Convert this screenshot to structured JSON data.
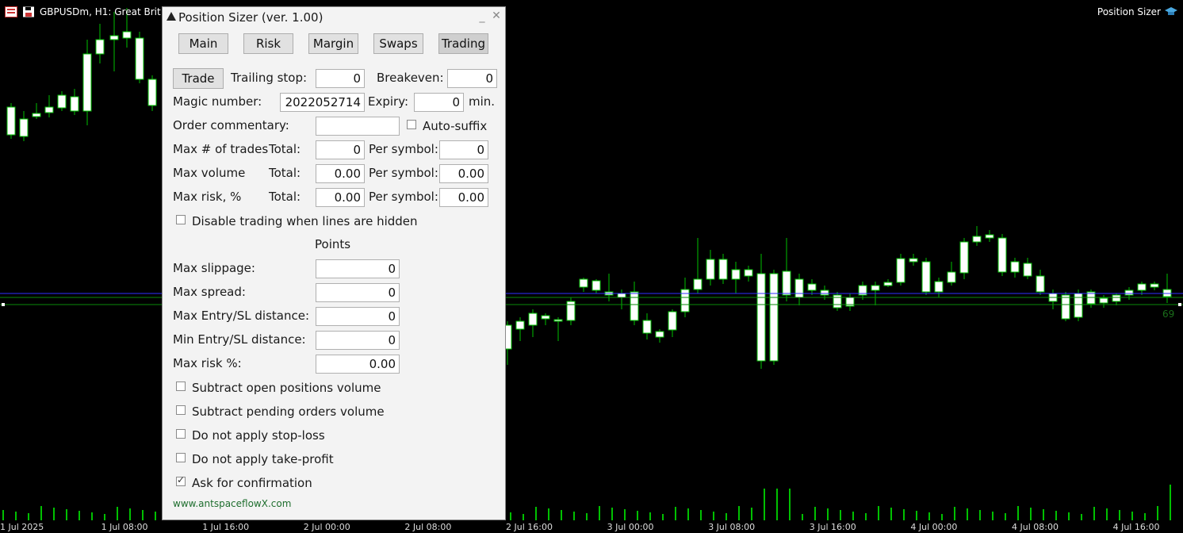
{
  "chart": {
    "title": "GBPUSDm, H1:  Great Brit",
    "right_label": "Position Sizer",
    "price_tag": "69",
    "time_labels": [
      "1 Jul 2025",
      "1 Jul 08:00",
      "1 Jul 16:00",
      "2 Jul 00:00",
      "2 Jul 08:00",
      "2 Jul 16:00",
      "3 Jul 00:00",
      "3 Jul 08:00",
      "3 Jul 16:00",
      "4 Jul 00:00",
      "4 Jul 08:00",
      "4 Jul 16:00"
    ],
    "colors": {
      "bg": "#000000",
      "candle": "#00c000",
      "bull_fill": "#000000",
      "bear_fill": "#ffffff",
      "line_blue": "#3030ff",
      "line_green": "#0a8a0a"
    }
  },
  "panel": {
    "title": "Position Sizer (ver. 1.00)",
    "minimize": "_",
    "close": "✕",
    "tabs": [
      "Main",
      "Risk",
      "Margin",
      "Swaps",
      "Trading"
    ],
    "active_tab": "Trading",
    "trade_button": "Trade",
    "trailing_stop_label": "Trailing stop:",
    "trailing_stop_value": "0",
    "breakeven_label": "Breakeven:",
    "breakeven_value": "0",
    "magic_label": "Magic number:",
    "magic_value": "2022052714",
    "expiry_label": "Expiry:",
    "expiry_value": "0",
    "expiry_unit": "min.",
    "commentary_label": "Order commentary:",
    "commentary_value": "",
    "auto_suffix_label": "Auto-suffix",
    "max_trades_label": "Max # of trades",
    "max_volume_label": "Max volume",
    "max_risk_label": "Max risk, %",
    "total_label": "Total:",
    "per_symbol_label": "Per symbol:",
    "max_trades_total": "0",
    "max_trades_per_symbol": "0",
    "max_volume_total": "0.00",
    "max_volume_per_symbol": "0.00",
    "max_risk_total": "0.00",
    "max_risk_per_symbol": "0.00",
    "disable_trading_label": "Disable trading when lines are hidden",
    "points_header": "Points",
    "max_slippage_label": "Max slippage:",
    "max_slippage_value": "0",
    "max_spread_label": "Max spread:",
    "max_spread_value": "0",
    "max_entry_sl_label": "Max Entry/SL distance:",
    "max_entry_sl_value": "0",
    "min_entry_sl_label": "Min Entry/SL distance:",
    "min_entry_sl_value": "0",
    "max_risk_pct_label": "Max risk %:",
    "max_risk_pct_value": "0.00",
    "subtract_open_label": "Subtract open positions volume",
    "subtract_pending_label": "Subtract pending orders volume",
    "no_sl_label": "Do not apply stop-loss",
    "no_tp_label": "Do not apply take-profit",
    "ask_confirm_label": "Ask for confirmation",
    "ask_confirm_checked": true,
    "footer": "www.antspaceflowX.com"
  }
}
